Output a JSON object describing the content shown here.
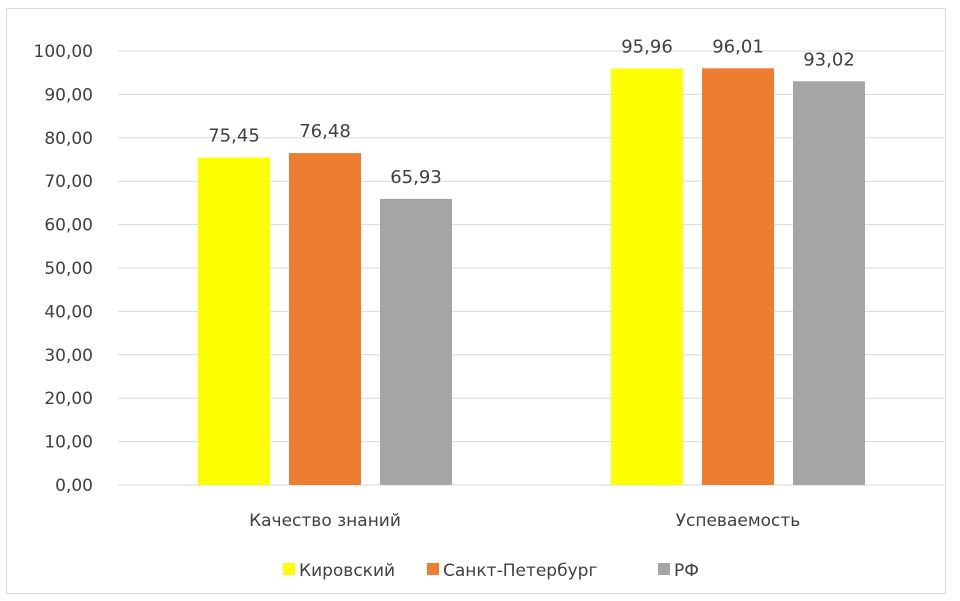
{
  "chart_data": {
    "type": "bar",
    "categories": [
      "Качество знаний",
      "Успеваемость"
    ],
    "series": [
      {
        "name": "Кировский",
        "color": "#ffff00",
        "values": [
          75.45,
          95.96
        ],
        "labels": [
          "75,45",
          "95,96"
        ]
      },
      {
        "name": "Санкт-Петербург",
        "color": "#ed7d31",
        "values": [
          76.48,
          96.01
        ],
        "labels": [
          "76,48",
          "96,01"
        ]
      },
      {
        "name": "РФ",
        "color": "#a5a5a5",
        "values": [
          65.93,
          93.02
        ],
        "labels": [
          "65,93",
          "93,02"
        ]
      }
    ],
    "ylim": [
      0,
      100
    ],
    "yticks": [
      0,
      10,
      20,
      30,
      40,
      50,
      60,
      70,
      80,
      90,
      100
    ],
    "ytick_labels": [
      "0,00",
      "10,00",
      "20,00",
      "30,00",
      "40,00",
      "50,00",
      "60,00",
      "70,00",
      "80,00",
      "90,00",
      "100,00"
    ],
    "grid": true,
    "legend_position": "bottom",
    "gridline_color": "#d9d9d9"
  }
}
